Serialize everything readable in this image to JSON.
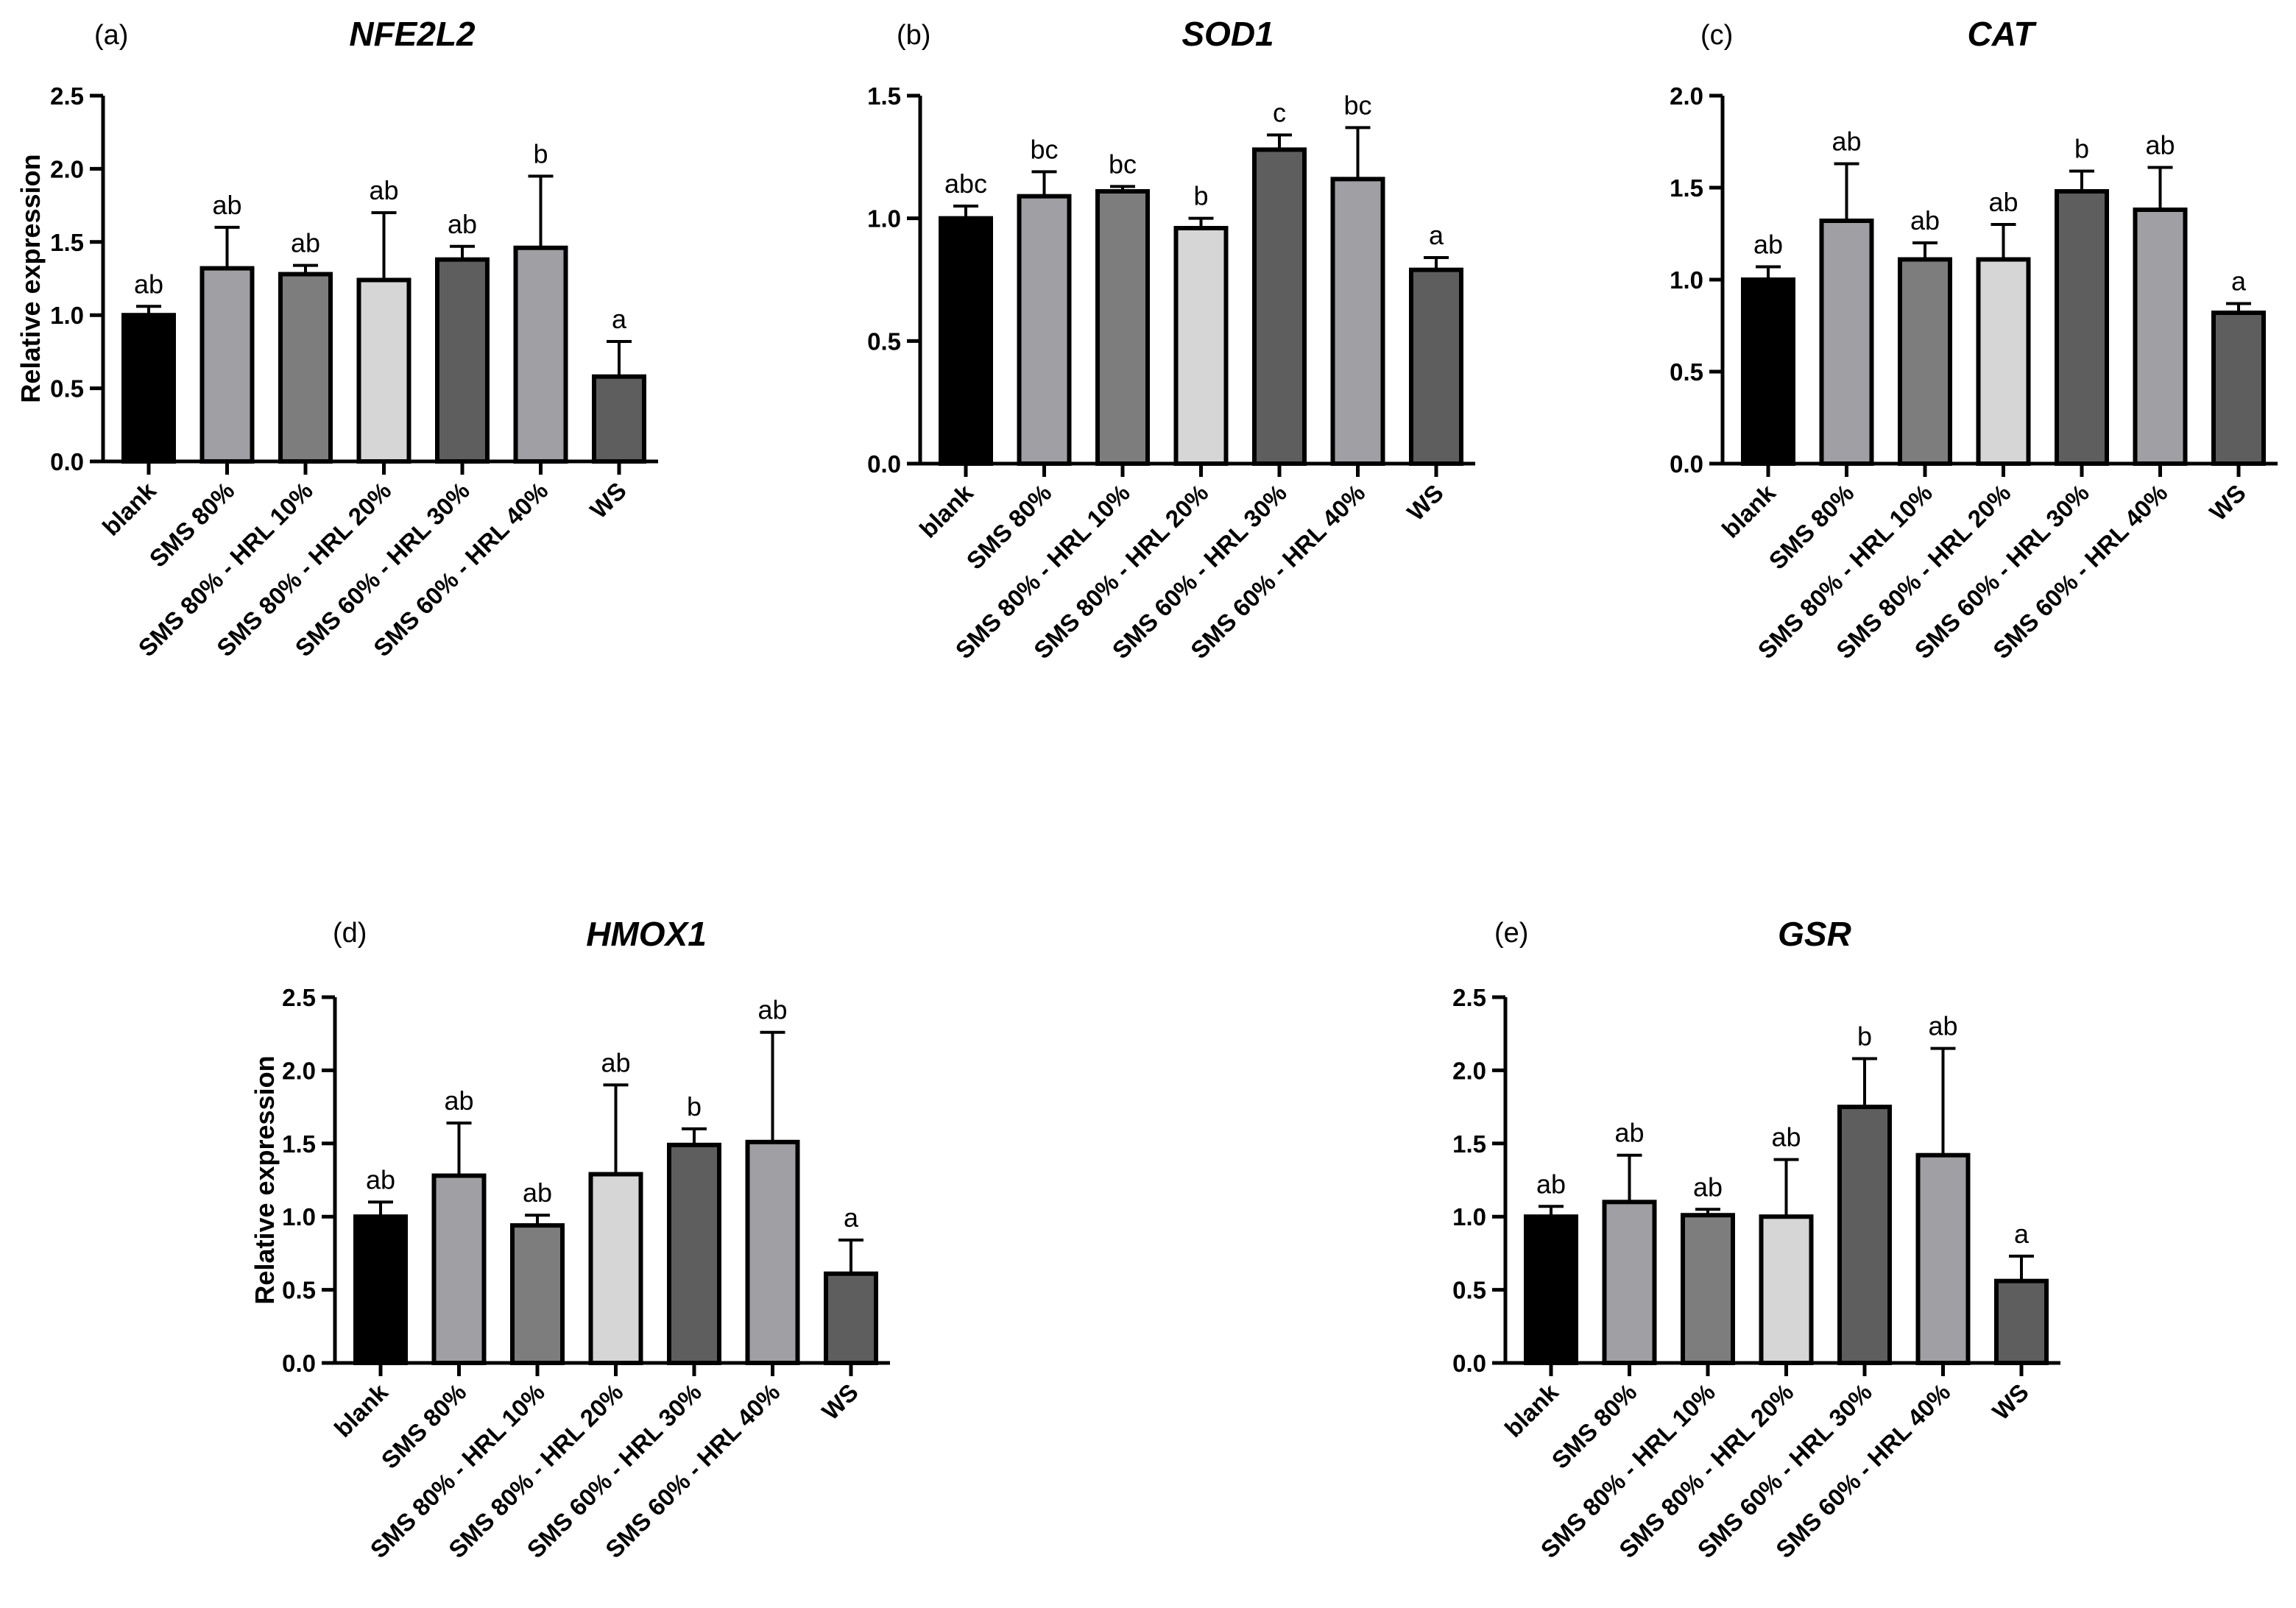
{
  "figure": {
    "categories": [
      "blank",
      "SMS 80%",
      "SMS 80% - HRL 10%",
      "SMS 80% - HRL 20%",
      "SMS 60% - HRL 30%",
      "SMS 60% - HRL 40%",
      "WS"
    ],
    "bar_colors": [
      "#000000",
      "#a0a0a4",
      "#7d7d7d",
      "#d6d6d6",
      "#5e5e5e",
      "#a0a0a4",
      "#5e5e5e"
    ]
  },
  "chart_data": [
    {
      "type": "bar",
      "panel": "(a)",
      "title": "NFE2L2",
      "ylabel": "Relative expression",
      "ylim": [
        0,
        2.5
      ],
      "yticks": [
        "0.0",
        "0.5",
        "1.0",
        "1.5",
        "2.0",
        "2.5"
      ],
      "categories": [
        "blank",
        "SMS 80%",
        "SMS 80% - HRL 10%",
        "SMS 80% - HRL 20%",
        "SMS 60% - HRL 30%",
        "SMS 60% - HRL 40%",
        "WS"
      ],
      "values": [
        1.0,
        1.32,
        1.28,
        1.24,
        1.38,
        1.46,
        0.58
      ],
      "errors": [
        0.06,
        0.28,
        0.06,
        0.46,
        0.09,
        0.49,
        0.24
      ],
      "significance": [
        "ab",
        "ab",
        "ab",
        "ab",
        "ab",
        "b",
        "a"
      ]
    },
    {
      "type": "bar",
      "panel": "(b)",
      "title": "SOD1",
      "ylabel": "",
      "ylim": [
        0,
        1.5
      ],
      "yticks": [
        "0.0",
        "0.5",
        "1.0",
        "1.5"
      ],
      "categories": [
        "blank",
        "SMS 80%",
        "SMS 80% - HRL 10%",
        "SMS 80% - HRL 20%",
        "SMS 60% - HRL 30%",
        "SMS 60% - HRL 40%",
        "WS"
      ],
      "values": [
        1.0,
        1.09,
        1.11,
        0.96,
        1.28,
        1.16,
        0.79
      ],
      "errors": [
        0.05,
        0.1,
        0.02,
        0.04,
        0.06,
        0.21,
        0.05
      ],
      "significance": [
        "abc",
        "bc",
        "bc",
        "b",
        "c",
        "bc",
        "a"
      ]
    },
    {
      "type": "bar",
      "panel": "(c)",
      "title": "CAT",
      "ylabel": "",
      "ylim": [
        0,
        2.0
      ],
      "yticks": [
        "0.0",
        "0.5",
        "1.0",
        "1.5",
        "2.0"
      ],
      "categories": [
        "blank",
        "SMS 80%",
        "SMS 80% - HRL 10%",
        "SMS 80% - HRL 20%",
        "SMS 60% - HRL 30%",
        "SMS 60% - HRL 40%",
        "WS"
      ],
      "values": [
        1.0,
        1.32,
        1.11,
        1.11,
        1.48,
        1.38,
        0.82
      ],
      "errors": [
        0.07,
        0.31,
        0.09,
        0.19,
        0.11,
        0.23,
        0.05
      ],
      "significance": [
        "ab",
        "ab",
        "ab",
        "ab",
        "b",
        "ab",
        "a"
      ]
    },
    {
      "type": "bar",
      "panel": "(d)",
      "title": "HMOX1",
      "ylabel": "Relative expression",
      "ylim": [
        0,
        2.5
      ],
      "yticks": [
        "0.0",
        "0.5",
        "1.0",
        "1.5",
        "2.0",
        "2.5"
      ],
      "categories": [
        "blank",
        "SMS 80%",
        "SMS 80% - HRL 10%",
        "SMS 80% - HRL 20%",
        "SMS 60% - HRL 30%",
        "SMS 60% - HRL 40%",
        "WS"
      ],
      "values": [
        1.0,
        1.28,
        0.94,
        1.29,
        1.49,
        1.51,
        0.61
      ],
      "errors": [
        0.1,
        0.36,
        0.07,
        0.61,
        0.11,
        0.75,
        0.23
      ],
      "significance": [
        "ab",
        "ab",
        "ab",
        "ab",
        "b",
        "ab",
        "a"
      ]
    },
    {
      "type": "bar",
      "panel": "(e)",
      "title": "GSR",
      "ylabel": "",
      "ylim": [
        0,
        2.5
      ],
      "yticks": [
        "0.0",
        "0.5",
        "1.0",
        "1.5",
        "2.0",
        "2.5"
      ],
      "categories": [
        "blank",
        "SMS 80%",
        "SMS 80% - HRL 10%",
        "SMS 80% - HRL 20%",
        "SMS 60% - HRL 30%",
        "SMS 60% - HRL 40%",
        "WS"
      ],
      "values": [
        1.0,
        1.1,
        1.01,
        1.0,
        1.75,
        1.42,
        0.56
      ],
      "errors": [
        0.07,
        0.32,
        0.04,
        0.39,
        0.33,
        0.73,
        0.17
      ],
      "significance": [
        "ab",
        "ab",
        "ab",
        "ab",
        "b",
        "ab",
        "a"
      ]
    }
  ]
}
